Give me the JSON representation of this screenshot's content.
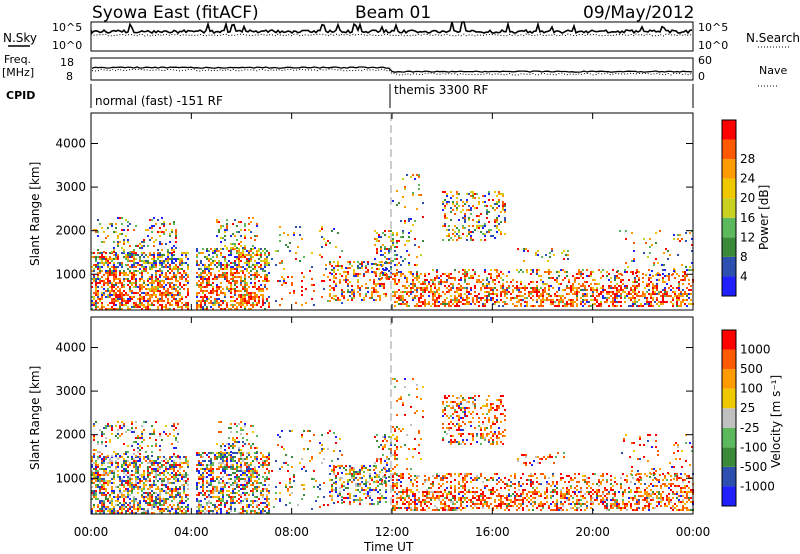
{
  "header": {
    "station": "Syowa East (fitACF)",
    "beam": "Beam 01",
    "date": "09/May/2012"
  },
  "top_panels": {
    "nsky_label": "N.Sky",
    "nsearch_label": "N.Search",
    "n_ticks": [
      "10^5",
      "10^0"
    ],
    "freq_label_1": "Freq.",
    "freq_label_2": "[MHz]",
    "freq_ticks": [
      "18",
      "8"
    ],
    "nave_label": "Nave",
    "nave_ticks": [
      "60",
      "0"
    ],
    "cpid_label": "CPID",
    "cpid_modes": [
      "normal (fast) -151 RF",
      "themis 3300 RF"
    ]
  },
  "colors": {
    "power": [
      "#1f1fff",
      "#2c4fb0",
      "#3a8a3a",
      "#5cb85c",
      "#c8d020",
      "#f0c800",
      "#ff9a00",
      "#ff5a00",
      "#ff0000"
    ],
    "velocity": [
      "#1f1fff",
      "#2c4fb0",
      "#3a8a3a",
      "#5cb85c",
      "#c0c0c0",
      "#f0c800",
      "#ff9a00",
      "#ff5a00",
      "#ff0000"
    ]
  },
  "chart_data": [
    {
      "type": "heatmap",
      "name": "power",
      "ylabel": "Slant Range [km]",
      "xlabel": "Time UT",
      "x_ticks": [
        "00:00",
        "04:00",
        "08:00",
        "12:00",
        "16:00",
        "20:00",
        "00:00"
      ],
      "y_ticks": [
        "1000",
        "2000",
        "3000",
        "4000"
      ],
      "ylim": [
        180,
        4700
      ],
      "xlim_hours": [
        0,
        24
      ],
      "colorbar_label": "Power [dB]",
      "colorbar_ticks": [
        "4",
        "8",
        "12",
        "16",
        "20",
        "24",
        "28"
      ],
      "mode_change_hour": 12
    },
    {
      "type": "heatmap",
      "name": "velocity",
      "ylabel": "Slant Range [km]",
      "xlabel": "Time UT",
      "x_ticks": [
        "00:00",
        "04:00",
        "08:00",
        "12:00",
        "16:00",
        "20:00",
        "00:00"
      ],
      "y_ticks": [
        "1000",
        "2000",
        "3000",
        "4000"
      ],
      "ylim": [
        180,
        4700
      ],
      "xlim_hours": [
        0,
        24
      ],
      "colorbar_label": "Velocity [m s⁻¹]",
      "colorbar_ticks": [
        "1000",
        "500",
        "100",
        "25",
        "-25",
        "-100",
        "-500",
        "-1000"
      ],
      "mode_change_hour": 12
    }
  ]
}
